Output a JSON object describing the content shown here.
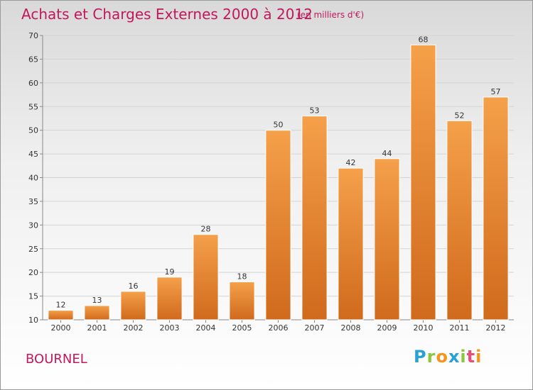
{
  "header": {
    "title": "Achats et Charges Externes 2000 à 2012",
    "subtitle": "(en milliers d'€)"
  },
  "footer": {
    "place": "BOURNEL",
    "logo_letters": [
      "P",
      "r",
      "o",
      "x",
      "i",
      "t",
      "i"
    ],
    "logo_colors": [
      "#2aa0d8",
      "#8cc63f",
      "#f7941d",
      "#2aa0d8",
      "#8cc63f",
      "#e94e77",
      "#f7941d"
    ]
  },
  "colors": {
    "bar_light": "#f5a04a",
    "bar_dark": "#d06a1c",
    "grid": "#d4d4d4",
    "axis": "#888888",
    "title": "#c2185b"
  },
  "chart_data": {
    "type": "bar",
    "title": "Achats et Charges Externes 2000 à 2012",
    "subtitle": "(en milliers d'€)",
    "xlabel": "",
    "ylabel": "",
    "categories": [
      "2000",
      "2001",
      "2002",
      "2003",
      "2004",
      "2005",
      "2006",
      "2007",
      "2008",
      "2009",
      "2010",
      "2011",
      "2012"
    ],
    "values": [
      12,
      13,
      16,
      19,
      28,
      18,
      50,
      53,
      42,
      44,
      68,
      52,
      57
    ],
    "ylim": [
      10,
      70
    ],
    "yticks": [
      10,
      15,
      20,
      25,
      30,
      35,
      40,
      45,
      50,
      55,
      60,
      65,
      70
    ],
    "grid": true,
    "legend": "none"
  }
}
